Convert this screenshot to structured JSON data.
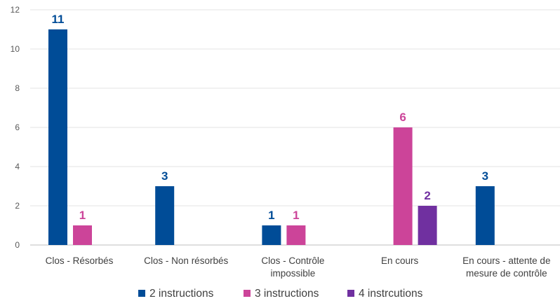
{
  "chart_data": {
    "type": "bar",
    "categories": [
      [
        "Clos - Résorbés"
      ],
      [
        "Clos - Non résorbés"
      ],
      [
        "Clos - Contrôle",
        "impossible"
      ],
      [
        "En cours"
      ],
      [
        "En cours - attente de",
        "mesure de contrôle"
      ]
    ],
    "series": [
      {
        "name": "2 instructions",
        "color": "#004C97",
        "values": [
          11,
          3,
          1,
          null,
          3
        ]
      },
      {
        "name": "3 instructions",
        "color": "#CC4499",
        "values": [
          1,
          null,
          1,
          6,
          null
        ]
      },
      {
        "name": "4 instrcutions",
        "color": "#7030A0",
        "values": [
          null,
          null,
          null,
          2,
          null
        ]
      }
    ],
    "ylim": [
      0,
      12
    ],
    "yticks": [
      0,
      2,
      4,
      6,
      8,
      10,
      12
    ],
    "grid": true,
    "legend": "bottom",
    "title": "",
    "xlabel": "",
    "ylabel": ""
  }
}
